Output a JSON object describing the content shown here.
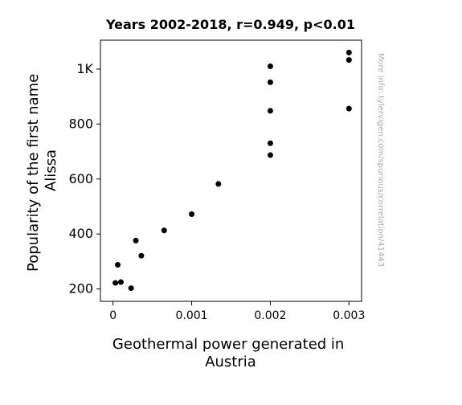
{
  "chart_data": {
    "type": "scatter",
    "title": "Years 2002-2018, r=0.949, p<0.01",
    "xlabel_lines": [
      "Geothermal power generated in",
      "Austria"
    ],
    "ylabel_lines": [
      "Popularity of the first name",
      "Alissa"
    ],
    "watermark": "More info: tylervigen.com/spurious/correlation/41443",
    "xlim": [
      -0.00016,
      0.00316
    ],
    "ylim": [
      155,
      1105
    ],
    "x_ticks": [
      {
        "value": 0,
        "label": "0"
      },
      {
        "value": 0.001,
        "label": "0.001"
      },
      {
        "value": 0.002,
        "label": "0.002"
      },
      {
        "value": 0.003,
        "label": "0.003"
      }
    ],
    "y_ticks": [
      {
        "value": 200,
        "label": "200"
      },
      {
        "value": 400,
        "label": "400"
      },
      {
        "value": 600,
        "label": "600"
      },
      {
        "value": 800,
        "label": "800"
      },
      {
        "value": 1000,
        "label": "1K"
      }
    ],
    "grid": false,
    "marker_color": "#000000",
    "points": [
      {
        "x": 3e-05,
        "y": 222
      },
      {
        "x": 6e-05,
        "y": 288
      },
      {
        "x": 0.0001,
        "y": 225
      },
      {
        "x": 0.00023,
        "y": 203
      },
      {
        "x": 0.00029,
        "y": 376
      },
      {
        "x": 0.00036,
        "y": 321
      },
      {
        "x": 0.00065,
        "y": 413
      },
      {
        "x": 0.001,
        "y": 472
      },
      {
        "x": 0.00134,
        "y": 582
      },
      {
        "x": 0.002,
        "y": 1010
      },
      {
        "x": 0.002,
        "y": 952
      },
      {
        "x": 0.002,
        "y": 848
      },
      {
        "x": 0.002,
        "y": 730
      },
      {
        "x": 0.002,
        "y": 687
      },
      {
        "x": 0.003,
        "y": 1060
      },
      {
        "x": 0.003,
        "y": 1033
      },
      {
        "x": 0.003,
        "y": 856
      }
    ]
  }
}
